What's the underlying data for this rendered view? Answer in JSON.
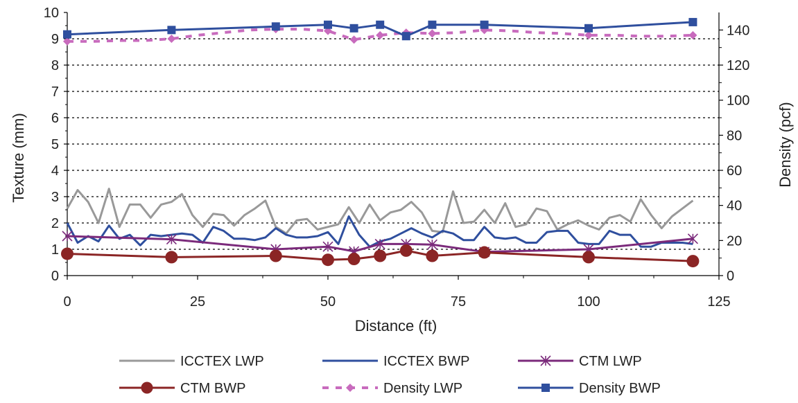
{
  "chart_data": {
    "type": "line",
    "xlabel": "Distance (ft)",
    "ylabel_left": "Texture (mm)",
    "ylabel_right": "Density (pcf)",
    "xlim": [
      0,
      125
    ],
    "ylim_left": [
      0,
      10
    ],
    "ylim_right": [
      0,
      150
    ],
    "xticks": [
      0,
      25,
      50,
      75,
      100,
      125
    ],
    "yticks_left": [
      0,
      1,
      2,
      3,
      4,
      5,
      6,
      7,
      8,
      9,
      10
    ],
    "yticks_right": [
      0,
      20,
      40,
      60,
      80,
      100,
      120,
      140
    ],
    "grid": "horizontal dotted",
    "legend_position": "bottom",
    "series": [
      {
        "name": "ICCTEX LWP",
        "axis": "left",
        "color": "#999999",
        "style": "solid",
        "marker": "none",
        "x": [
          0,
          2,
          4,
          6,
          8,
          10,
          12,
          14,
          16,
          18,
          20,
          22,
          24,
          26,
          28,
          30,
          32,
          34,
          36,
          38,
          40,
          42,
          44,
          46,
          48,
          50,
          52,
          54,
          56,
          58,
          60,
          62,
          64,
          66,
          68,
          70,
          72,
          74,
          76,
          78,
          80,
          82,
          84,
          86,
          88,
          90,
          92,
          94,
          96,
          98,
          100,
          102,
          104,
          106,
          108,
          110,
          112,
          114,
          116,
          118,
          120
        ],
        "y": [
          2.55,
          3.25,
          2.8,
          2.0,
          3.3,
          1.85,
          2.7,
          2.7,
          2.2,
          2.7,
          2.8,
          3.1,
          2.3,
          1.85,
          2.35,
          2.3,
          1.9,
          2.3,
          2.55,
          2.85,
          1.85,
          1.6,
          2.1,
          2.15,
          1.75,
          1.85,
          1.95,
          2.6,
          2.0,
          2.7,
          2.1,
          2.4,
          2.5,
          2.8,
          2.4,
          1.7,
          1.65,
          3.2,
          2.0,
          2.05,
          2.5,
          2.0,
          2.75,
          1.85,
          1.95,
          2.55,
          2.45,
          1.75,
          1.95,
          2.1,
          1.9,
          1.75,
          2.2,
          2.3,
          2.05,
          2.9,
          2.3,
          1.8,
          2.25,
          2.55,
          2.85
        ]
      },
      {
        "name": "ICCTEX BWP",
        "axis": "left",
        "color": "#2f4f9e",
        "style": "solid",
        "marker": "none",
        "x": [
          0,
          2,
          4,
          6,
          8,
          10,
          12,
          14,
          16,
          18,
          20,
          22,
          24,
          26,
          28,
          30,
          32,
          34,
          36,
          38,
          40,
          42,
          44,
          46,
          48,
          50,
          52,
          54,
          56,
          58,
          60,
          62,
          64,
          66,
          68,
          70,
          72,
          74,
          76,
          78,
          80,
          82,
          84,
          86,
          88,
          90,
          92,
          94,
          96,
          98,
          100,
          102,
          104,
          106,
          108,
          110,
          112,
          114,
          116,
          118,
          120
        ],
        "y": [
          2.0,
          1.25,
          1.5,
          1.3,
          1.9,
          1.4,
          1.55,
          1.15,
          1.55,
          1.5,
          1.55,
          1.6,
          1.55,
          1.25,
          1.85,
          1.7,
          1.4,
          1.4,
          1.35,
          1.45,
          1.8,
          1.55,
          1.45,
          1.45,
          1.5,
          1.65,
          1.2,
          2.25,
          1.55,
          1.1,
          1.3,
          1.4,
          1.6,
          1.8,
          1.6,
          1.45,
          1.7,
          1.6,
          1.35,
          1.35,
          1.85,
          1.45,
          1.4,
          1.45,
          1.25,
          1.25,
          1.65,
          1.7,
          1.7,
          1.25,
          1.2,
          1.2,
          1.7,
          1.55,
          1.55,
          1.1,
          1.1,
          1.25,
          1.25,
          1.25,
          1.2
        ]
      },
      {
        "name": "CTM LWP",
        "axis": "left",
        "color": "#7b2a7b",
        "style": "solid",
        "marker": "asterisk",
        "x": [
          0,
          20,
          40,
          50,
          55,
          60,
          65,
          70,
          80,
          100,
          120
        ],
        "y": [
          1.5,
          1.38,
          1.0,
          1.1,
          0.92,
          1.2,
          1.2,
          1.18,
          0.9,
          1.0,
          1.4
        ]
      },
      {
        "name": "CTM BWP",
        "axis": "left",
        "color": "#8b2525",
        "style": "solid",
        "marker": "circle",
        "x": [
          0,
          20,
          40,
          50,
          55,
          60,
          65,
          70,
          80,
          100,
          120
        ],
        "y": [
          0.83,
          0.7,
          0.75,
          0.6,
          0.63,
          0.75,
          0.95,
          0.75,
          0.88,
          0.7,
          0.55
        ]
      },
      {
        "name": "Density LWP",
        "axis": "right",
        "color": "#c86bbd",
        "style": "dashed",
        "marker": "diamond",
        "x": [
          0,
          5,
          10,
          15,
          20,
          25,
          30,
          35,
          40,
          45,
          50,
          55,
          60,
          65,
          70,
          75,
          80,
          85,
          90,
          95,
          100,
          105,
          110,
          115,
          120
        ],
        "y": [
          133.5,
          133.5,
          134,
          134,
          135,
          137,
          138.5,
          140,
          140.5,
          140.5,
          139.5,
          134.5,
          137,
          138.5,
          138,
          138.5,
          140,
          139.5,
          138.5,
          138,
          137,
          137,
          136.5,
          136.5,
          137
        ]
      },
      {
        "name": "Density BWP",
        "axis": "right",
        "color": "#2f4f9e",
        "style": "solid",
        "marker": "square",
        "x": [
          0,
          20,
          40,
          50,
          55,
          60,
          65,
          70,
          80,
          100,
          120
        ],
        "y": [
          137.5,
          140,
          142,
          143,
          141,
          143,
          136.5,
          143,
          143,
          141,
          144.5
        ]
      }
    ]
  }
}
